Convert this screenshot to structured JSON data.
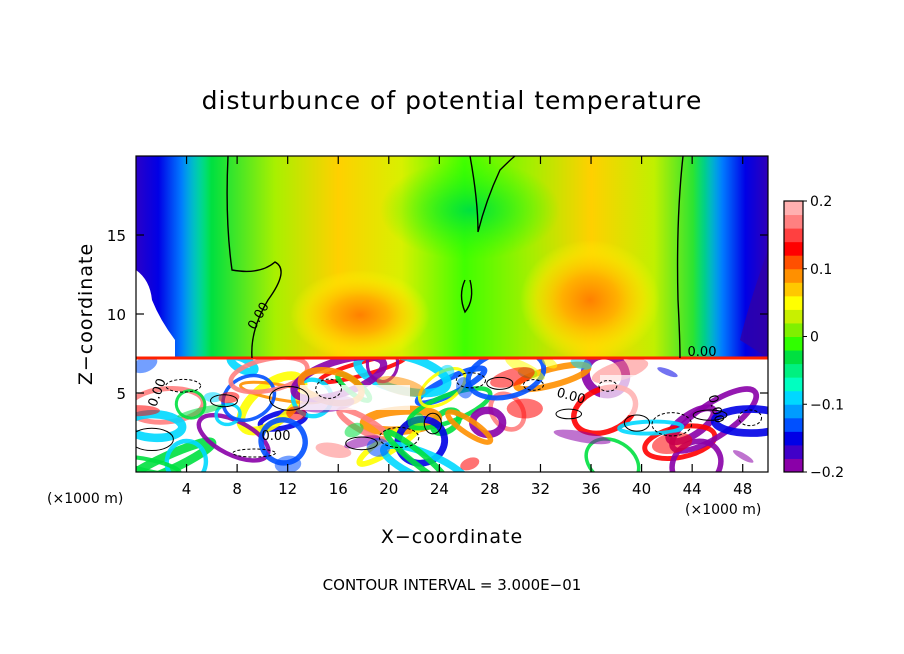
{
  "chart_data": {
    "type": "heatmap",
    "title": "disturbunce of potential temperature",
    "xlabel": "X−coordinate",
    "ylabel": "Z−coordinate",
    "x_unit_left": "(×1000 m)",
    "x_unit_right": "(×1000 m)",
    "xlim": [
      0,
      50
    ],
    "ylim": [
      0,
      20
    ],
    "x_ticks": [
      4,
      8,
      12,
      16,
      20,
      24,
      28,
      32,
      36,
      40,
      44,
      48
    ],
    "y_ticks": [
      5,
      10,
      15
    ],
    "colorbar": {
      "vmin": -0.2,
      "vmax": 0.2,
      "tick_values": [
        0.2,
        0.1,
        0,
        -0.1,
        -0.2
      ],
      "tick_labels": [
        "0.2",
        "0.1",
        "0",
        "−0.1",
        "−0.2"
      ],
      "colors": [
        "#8a00a8",
        "#4000c8",
        "#0000e6",
        "#0050ff",
        "#009cff",
        "#00d8ff",
        "#00ffc0",
        "#00f080",
        "#00e040",
        "#30ff00",
        "#80f000",
        "#c8f000",
        "#ffff00",
        "#ffc800",
        "#ff9000",
        "#ff5000",
        "#ff0000",
        "#ff4040",
        "#ff8080",
        "#ffb0b0"
      ]
    },
    "contour_labels": [
      "0.00",
      "0.00",
      "0.00",
      "0.00",
      "0.00",
      "0.00"
    ],
    "contour_interval_text": "CONTOUR INTERVAL = 3.000E−01",
    "regions": {
      "upper_layer": "z > 7.5: near-zero to +0.1 values, negative near side boundaries",
      "lower_layer": "z < 7.5: turbulent mixing with values beyond ±0.2 (white = out of range)"
    }
  }
}
